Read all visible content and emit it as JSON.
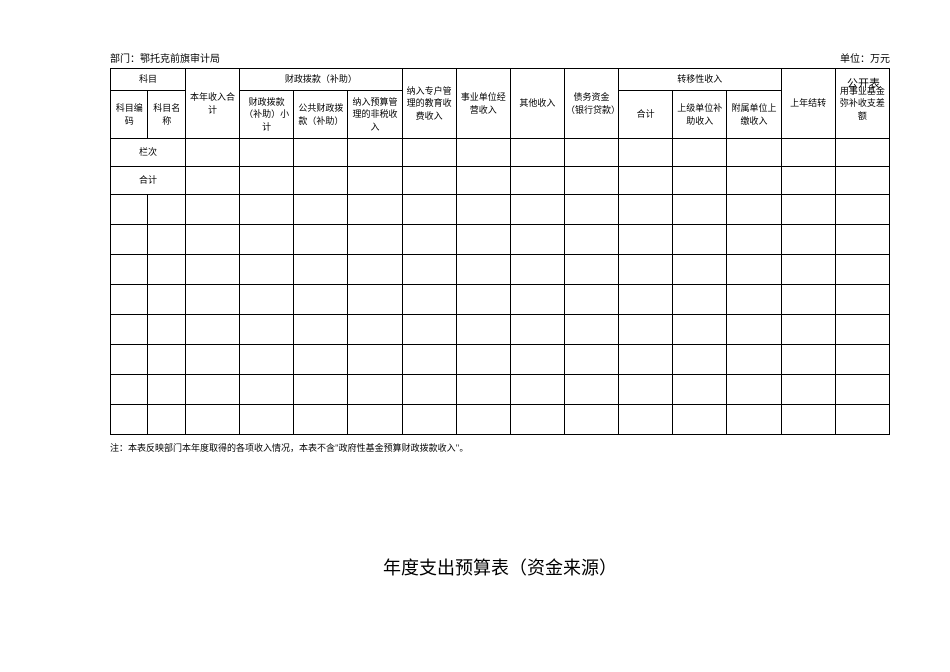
{
  "labels": {
    "public_table": "公开表",
    "department": "部门：鄂托克前旗审计局",
    "unit": "单位：万元"
  },
  "table": {
    "headers": {
      "subject": "科目",
      "subject_code": "科目编码",
      "subject_name": "科目名称",
      "current_year_income": "本年收入合计",
      "fiscal_allocation": "财政拨款（补助）",
      "fiscal_allocation_sub": "财政拨款（补助）小计",
      "public_fiscal": "公共财政拨款（补助）",
      "budget_mgmt_nontax": "纳入预算管理的非税收入",
      "special_edu_fee": "纳入专户管理的教育收费收入",
      "institution_income": "事业单位经营收入",
      "other_income": "其他收入",
      "debt_funds": "债务资金（银行贷款）",
      "transfer_income": "转移性收入",
      "transfer_subtotal": "合计",
      "superior_subsidy": "上级单位补助收入",
      "affiliated_payment": "附属单位上缴收入",
      "prev_year_carryover": "上年结转",
      "institution_fund_diff": "用事业基金弥补收支差额"
    },
    "row_labels": {
      "column_order": "栏次",
      "total": "合计"
    },
    "empty_rows": 8
  },
  "note": "注：本表反映部门本年度取得的各项收入情况，本表不含\"政府性基金预算财政拨款收入\"。",
  "page_title": "年度支出预算表（资金来源）",
  "styling": {
    "background_color": "#ffffff",
    "border_color": "#000000",
    "text_color": "#000000",
    "title_fontsize": 18,
    "header_fontsize": 9,
    "body_fontsize": 10,
    "font_family": "SimSun"
  }
}
